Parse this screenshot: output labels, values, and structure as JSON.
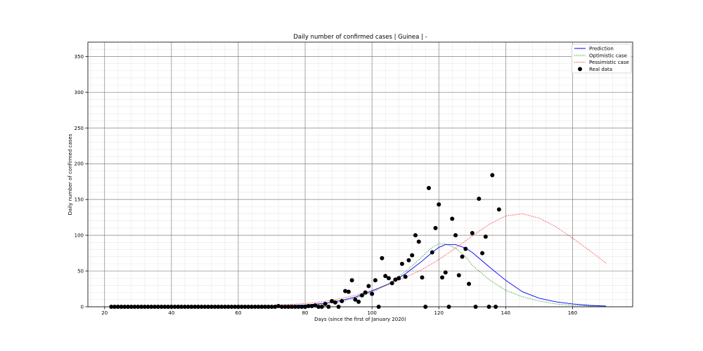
{
  "chart_data": {
    "type": "line",
    "title": "Daily number of confirmed cases | Guinea | -",
    "xlabel": "Days (since the first of January 2020)",
    "ylabel": "Daily number of confirmed cases",
    "xlim": [
      15,
      178
    ],
    "ylim": [
      0,
      370
    ],
    "xticks": [
      20,
      40,
      60,
      80,
      100,
      120,
      140,
      160
    ],
    "yticks": [
      0,
      50,
      100,
      150,
      200,
      250,
      300,
      350
    ],
    "grid": true,
    "legend_position": "top-right",
    "series": [
      {
        "name": "Prediction",
        "style": "solid",
        "color": "#0000ff",
        "x": [
          22,
          40,
          60,
          70,
          80,
          85,
          90,
          95,
          100,
          105,
          110,
          115,
          118,
          120,
          122,
          125,
          128,
          130,
          135,
          140,
          145,
          150,
          155,
          160,
          165,
          170
        ],
        "y": [
          0,
          0,
          0.5,
          1,
          2.5,
          4.5,
          8,
          13.5,
          22,
          32,
          46,
          64,
          76,
          83,
          87,
          87,
          82,
          76,
          56,
          37,
          21,
          12,
          7,
          4,
          2,
          1
        ]
      },
      {
        "name": "Optimistic case",
        "style": "dotted",
        "color": "#008000",
        "x": [
          22,
          40,
          60,
          70,
          80,
          85,
          90,
          95,
          100,
          105,
          110,
          115,
          118,
          120,
          122,
          125,
          128,
          130,
          135,
          140,
          145,
          150,
          155,
          160,
          165,
          170
        ],
        "y": [
          0,
          0,
          0.3,
          0.8,
          2,
          3.5,
          6.5,
          12,
          20,
          32,
          49,
          70,
          83,
          88,
          88,
          82,
          70,
          58,
          38,
          23,
          14,
          8,
          4,
          2,
          1,
          0.5
        ]
      },
      {
        "name": "Pessimistic case",
        "style": "dotted",
        "color": "#ff0000",
        "x": [
          22,
          40,
          60,
          70,
          80,
          85,
          90,
          95,
          100,
          105,
          110,
          115,
          120,
          125,
          130,
          135,
          140,
          145,
          150,
          155,
          160,
          165,
          170
        ],
        "y": [
          0,
          0,
          0.8,
          2,
          4.5,
          7,
          11,
          16,
          23,
          31,
          41,
          52,
          66,
          82,
          99,
          115,
          127,
          130,
          124,
          112,
          96,
          79,
          61
        ]
      },
      {
        "name": "Real data",
        "style": "scatter",
        "color": "#000000",
        "x": [
          22,
          23,
          24,
          25,
          26,
          27,
          28,
          29,
          30,
          31,
          32,
          33,
          34,
          35,
          36,
          37,
          38,
          39,
          40,
          41,
          42,
          43,
          44,
          45,
          46,
          47,
          48,
          49,
          50,
          51,
          52,
          53,
          54,
          55,
          56,
          57,
          58,
          59,
          60,
          61,
          62,
          63,
          64,
          65,
          66,
          67,
          68,
          69,
          70,
          71,
          72,
          73,
          74,
          75,
          76,
          77,
          78,
          79,
          80,
          81,
          82,
          83,
          84,
          85,
          86,
          87,
          88,
          89,
          90,
          91,
          92,
          93,
          94,
          95,
          96,
          97,
          98,
          99,
          100,
          101,
          102,
          103,
          104,
          105,
          106,
          107,
          108,
          109,
          110,
          111,
          112,
          113,
          114,
          115,
          116,
          117,
          118,
          119,
          120,
          121,
          122,
          123,
          124,
          125,
          126,
          127,
          128,
          129,
          130,
          131,
          132,
          133,
          134,
          135,
          136,
          137,
          138
        ],
        "y": [
          0,
          0,
          0,
          0,
          0,
          0,
          0,
          0,
          0,
          0,
          0,
          0,
          0,
          0,
          0,
          0,
          0,
          0,
          0,
          0,
          0,
          0,
          0,
          0,
          0,
          0,
          0,
          0,
          0,
          0,
          0,
          0,
          0,
          0,
          0,
          0,
          0,
          0,
          0,
          0,
          0,
          0,
          0,
          0,
          0,
          0,
          0,
          0,
          0,
          0,
          1,
          0,
          0,
          0,
          0,
          0,
          0,
          0,
          0,
          1,
          1,
          2,
          0,
          0,
          4,
          0,
          8,
          6,
          0,
          8,
          22,
          21,
          37,
          10,
          7,
          16,
          20,
          29,
          18,
          37,
          0,
          68,
          43,
          40,
          33,
          38,
          40,
          60,
          42,
          65,
          72,
          100,
          91,
          41,
          0,
          166,
          76,
          110,
          143,
          41,
          48,
          0,
          123,
          100,
          44,
          70,
          81,
          32,
          103,
          0,
          151,
          75,
          98,
          0,
          184,
          0,
          136
        ]
      }
    ]
  }
}
